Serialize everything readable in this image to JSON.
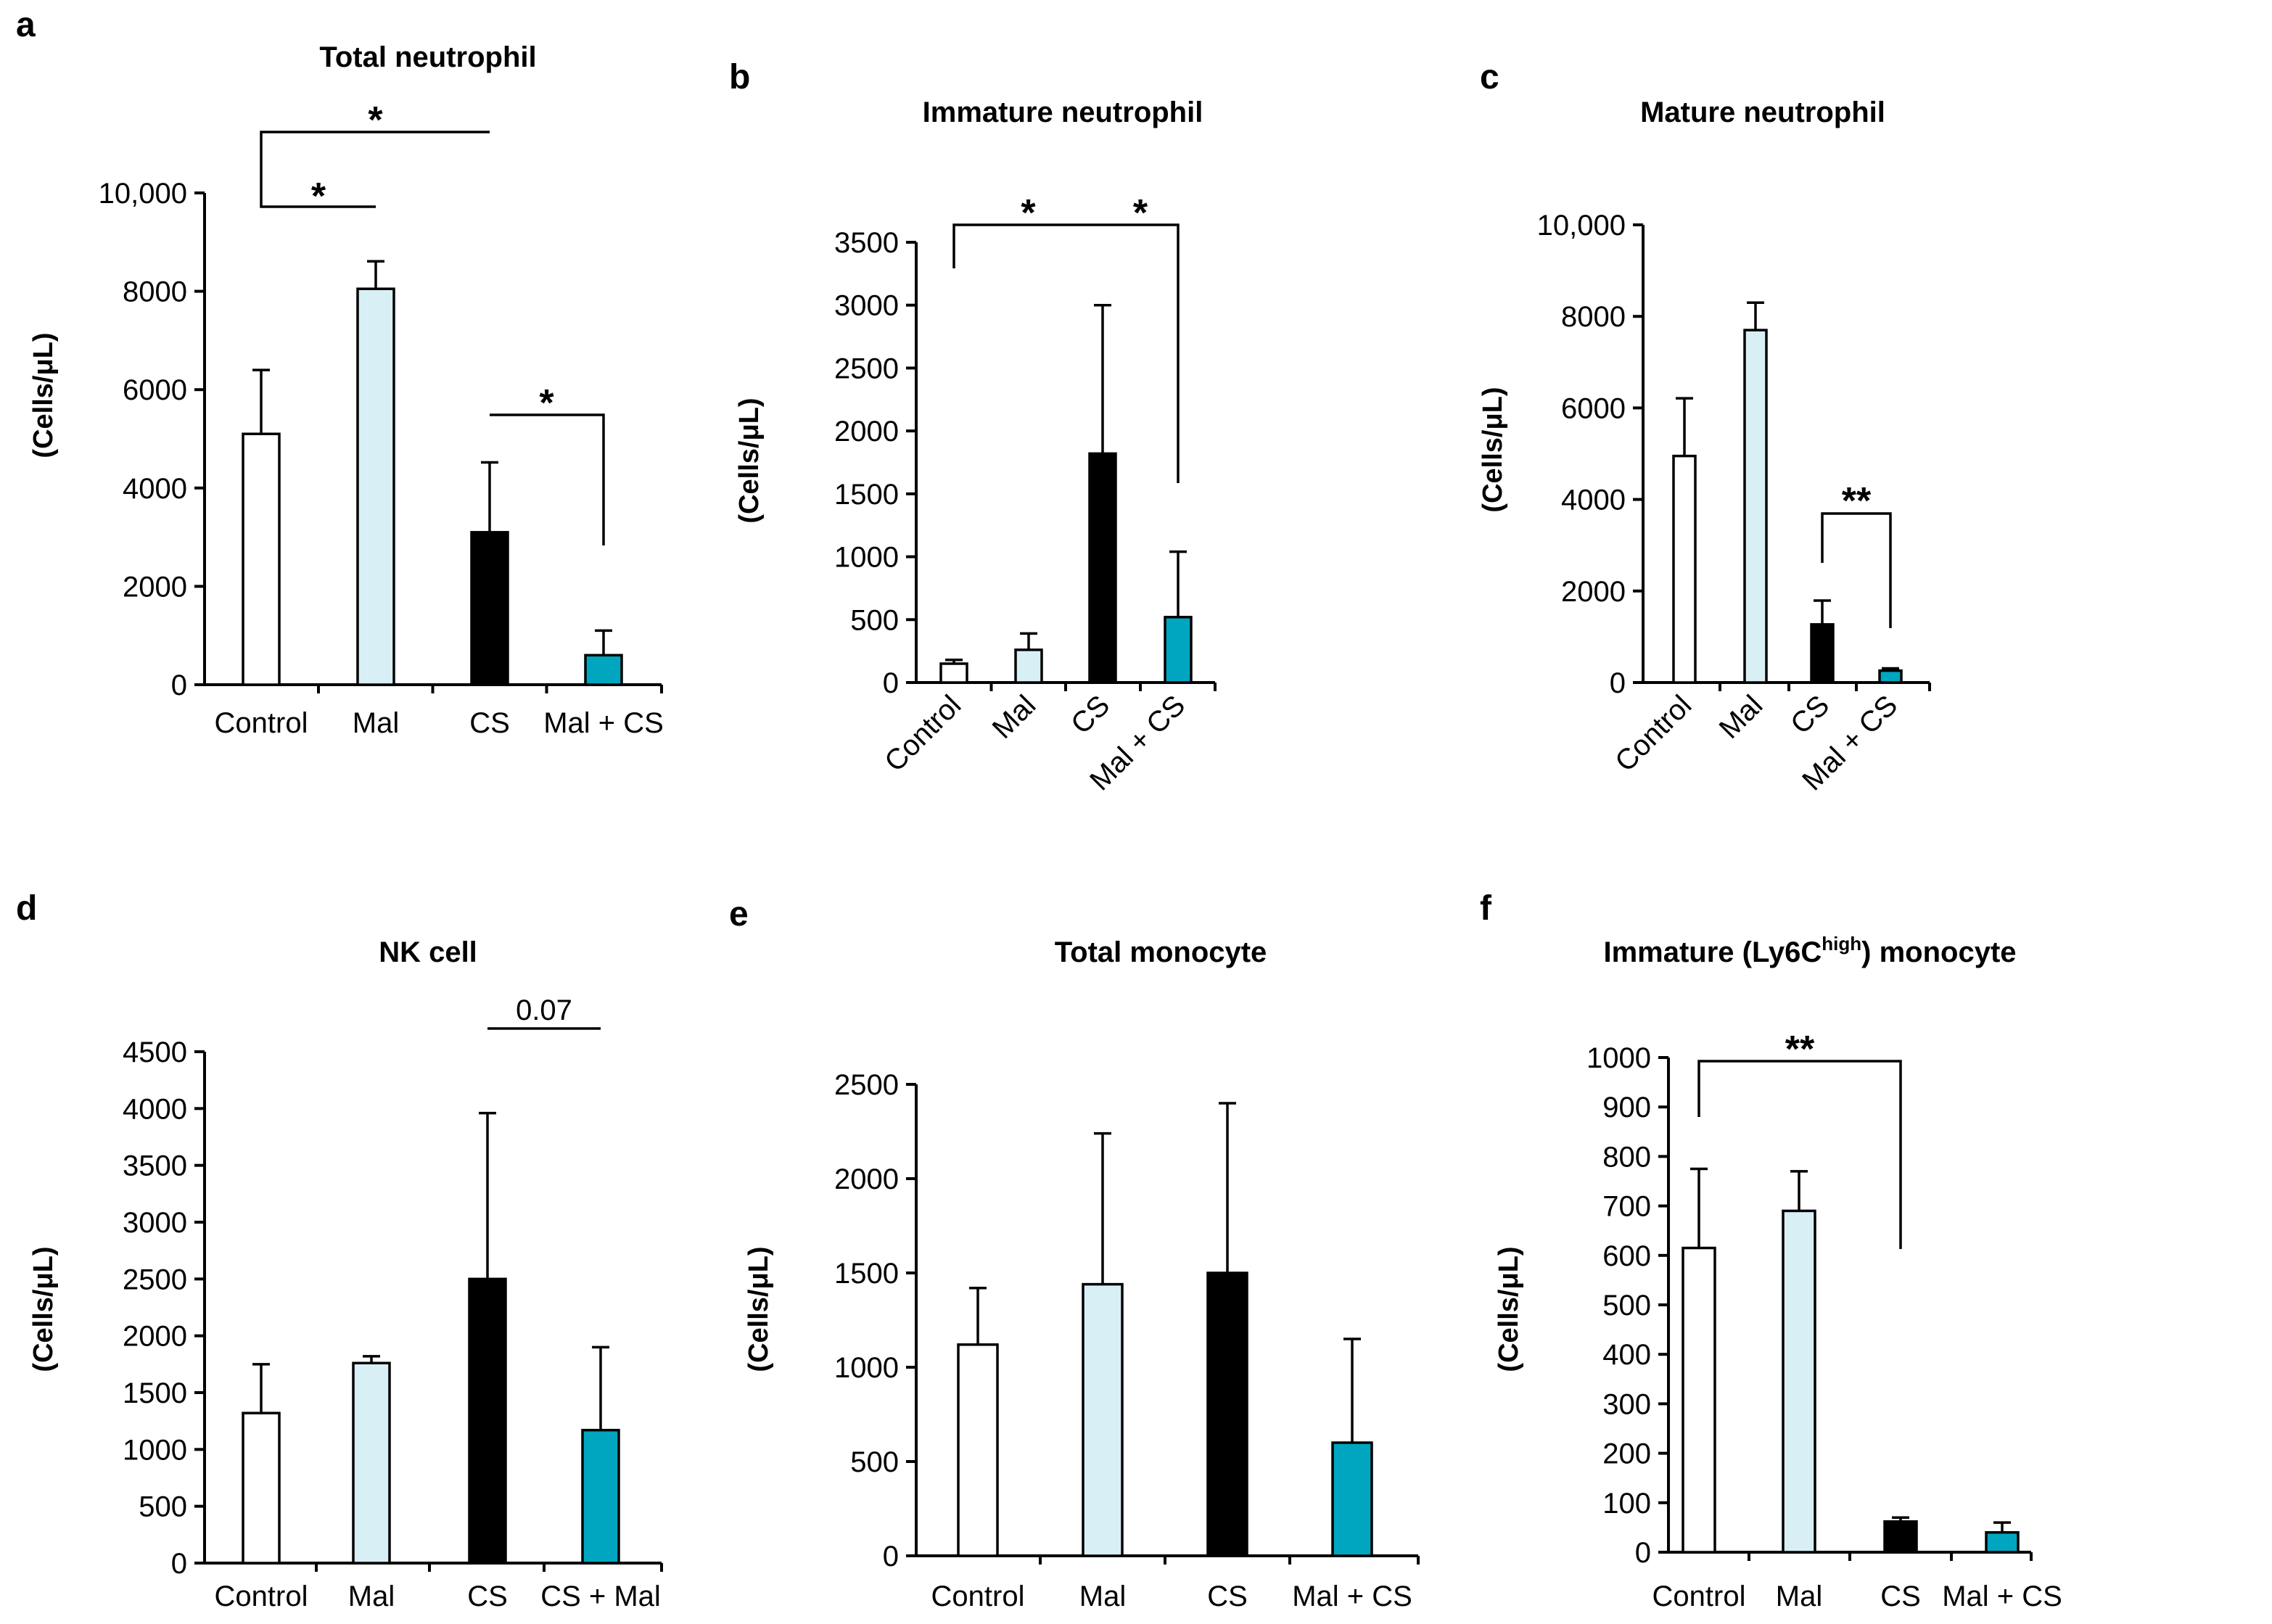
{
  "colors": {
    "Control": "#ffffff",
    "Mal": "#d9eff6",
    "CS": "#000000",
    "MalCS": "#00a6c0"
  },
  "chart_data": [
    {
      "letter": "a",
      "type": "bar",
      "title": "Total neutrophil",
      "ylabel": "(Cells/μL)",
      "ylim": [
        0,
        10000
      ],
      "ticks": [
        0,
        2000,
        4000,
        6000,
        8000,
        10000
      ],
      "tick_labels": [
        "0",
        "2000",
        "4000",
        "6000",
        "8000",
        "10,000"
      ],
      "categories": [
        "Control",
        "Mal",
        "CS",
        "Mal + CS"
      ],
      "series_keys": [
        "Control",
        "Mal",
        "CS",
        "MalCS"
      ],
      "values": [
        5100,
        8050,
        3100,
        600
      ],
      "errors": [
        1300,
        560,
        1420,
        500
      ],
      "significance": [
        {
          "from": 0,
          "to": 1,
          "label": "*"
        },
        {
          "from": 0,
          "to": 2,
          "label": "*"
        },
        {
          "from": 2,
          "to": 3,
          "label": "*"
        }
      ]
    },
    {
      "letter": "b",
      "type": "bar",
      "title": "Immature neutrophil",
      "ylabel": "(Cells/μL)",
      "ylim": [
        0,
        3500
      ],
      "ticks": [
        0,
        500,
        1000,
        1500,
        2000,
        2500,
        3000,
        3500
      ],
      "tick_labels": [
        "0",
        "500",
        "1000",
        "1500",
        "2000",
        "2500",
        "3000",
        "3500"
      ],
      "categories": [
        "Control",
        "Mal",
        "CS",
        "Mal + CS"
      ],
      "series_keys": [
        "Control",
        "Mal",
        "CS",
        "MalCS"
      ],
      "values": [
        150,
        260,
        1820,
        520
      ],
      "errors": [
        30,
        130,
        1180,
        520
      ],
      "significance": [
        {
          "from": 0,
          "to": 2,
          "label": "*"
        },
        {
          "from": 2,
          "to": 3,
          "label": "*"
        }
      ]
    },
    {
      "letter": "c",
      "type": "bar",
      "title": "Mature neutrophil",
      "ylabel": "(Cells/μL)",
      "ylim": [
        0,
        10000
      ],
      "ticks": [
        0,
        2000,
        4000,
        6000,
        8000,
        10000
      ],
      "tick_labels": [
        "0",
        "2000",
        "4000",
        "6000",
        "8000",
        "10,000"
      ],
      "categories": [
        "Control",
        "Mal",
        "CS",
        "Mal + CS"
      ],
      "series_keys": [
        "Control",
        "Mal",
        "CS",
        "MalCS"
      ],
      "values": [
        4950,
        7700,
        1270,
        260
      ],
      "errors": [
        1260,
        600,
        520,
        50
      ],
      "significance": [
        {
          "from": 2,
          "to": 3,
          "label": "**"
        }
      ]
    },
    {
      "letter": "d",
      "type": "bar",
      "title": "NK cell",
      "ylabel": "(Cells/μL)",
      "ylim": [
        0,
        4500
      ],
      "ticks": [
        0,
        500,
        1000,
        1500,
        2000,
        2500,
        3000,
        3500,
        4000,
        4500
      ],
      "tick_labels": [
        "0",
        "500",
        "1000",
        "1500",
        "2000",
        "2500",
        "3000",
        "3500",
        "4000",
        "4500"
      ],
      "categories": [
        "Control",
        "Mal",
        "CS",
        "CS + Mal"
      ],
      "series_keys": [
        "Control",
        "Mal",
        "CS",
        "MalCS"
      ],
      "values": [
        1320,
        1760,
        2500,
        1170
      ],
      "errors": [
        430,
        60,
        1460,
        730
      ],
      "significance": [
        {
          "from": 2,
          "to": 3,
          "label": "0.07",
          "style": "line"
        }
      ]
    },
    {
      "letter": "e",
      "type": "bar",
      "title": "Total monocyte",
      "ylabel": "(Cells/μL)",
      "ylim": [
        0,
        2500
      ],
      "ticks": [
        0,
        500,
        1000,
        1500,
        2000,
        2500
      ],
      "tick_labels": [
        "0",
        "500",
        "1000",
        "1500",
        "2000",
        "2500"
      ],
      "categories": [
        "Control",
        "Mal",
        "CS",
        "Mal + CS"
      ],
      "series_keys": [
        "Control",
        "Mal",
        "CS",
        "MalCS"
      ],
      "values": [
        1120,
        1440,
        1500,
        600
      ],
      "errors": [
        300,
        800,
        900,
        550
      ],
      "significance": []
    },
    {
      "letter": "f",
      "type": "bar",
      "title": "Immature (Ly6C",
      "title_sup": "high",
      "title_tail": ") monocyte",
      "ylabel": "(Cells/μL)",
      "ylim": [
        0,
        1000
      ],
      "ticks": [
        0,
        100,
        200,
        300,
        400,
        500,
        600,
        700,
        800,
        900,
        1000
      ],
      "tick_labels": [
        "0",
        "100",
        "200",
        "300",
        "400",
        "500",
        "600",
        "700",
        "800",
        "900",
        "1000"
      ],
      "categories": [
        "Control",
        "Mal",
        "CS",
        "Mal + CS"
      ],
      "series_keys": [
        "Control",
        "Mal",
        "CS",
        "MalCS"
      ],
      "values": [
        615,
        690,
        62,
        40
      ],
      "errors": [
        160,
        80,
        8,
        20
      ],
      "significance": [
        {
          "from": 0,
          "to": 2,
          "label": "**"
        }
      ]
    }
  ]
}
